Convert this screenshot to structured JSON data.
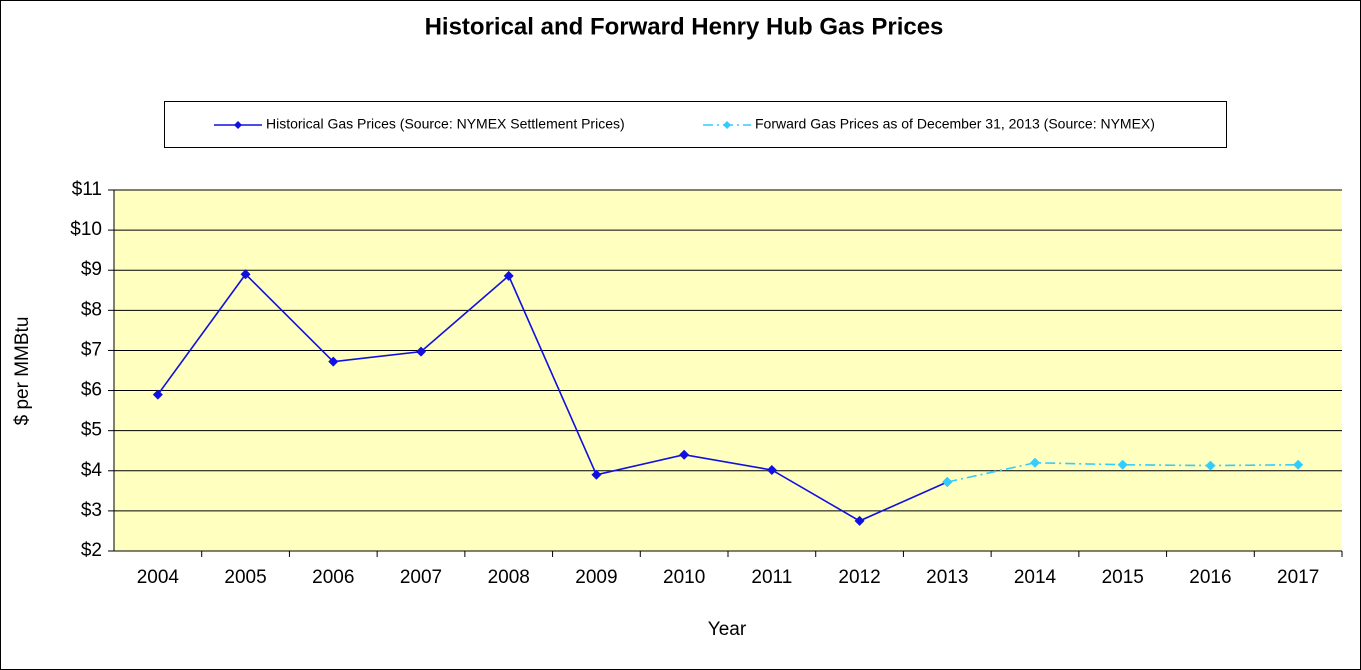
{
  "chart_data": {
    "type": "line",
    "title": "Historical and Forward Henry Hub Gas Prices",
    "x_label": "Year",
    "y_label": "$ per MMBtu",
    "categories": [
      "2004",
      "2005",
      "2006",
      "2007",
      "2008",
      "2009",
      "2010",
      "2011",
      "2012",
      "2013",
      "2014",
      "2015",
      "2016",
      "2017"
    ],
    "series": [
      {
        "name": "Historical Gas Prices (Source: NYMEX Settlement Prices)",
        "color": "#1010e0",
        "values": [
          5.9,
          8.9,
          6.72,
          6.97,
          8.86,
          3.9,
          4.4,
          4.02,
          2.75,
          3.72,
          null,
          null,
          null,
          null
        ]
      },
      {
        "name": "Forward Gas Prices as of December 31, 2013 (Source: NYMEX)",
        "color": "#33ccff",
        "values": [
          null,
          null,
          null,
          null,
          null,
          null,
          null,
          null,
          null,
          3.72,
          4.2,
          4.15,
          4.13,
          4.15
        ]
      }
    ],
    "ylim": [
      2,
      11
    ],
    "yticks": [
      {
        "value": 2,
        "label": "$2"
      },
      {
        "value": 3,
        "label": "$3"
      },
      {
        "value": 4,
        "label": "$4"
      },
      {
        "value": 5,
        "label": "$5"
      },
      {
        "value": 6,
        "label": "$6"
      },
      {
        "value": 7,
        "label": "$7"
      },
      {
        "value": 8,
        "label": "$8"
      },
      {
        "value": 9,
        "label": "$9"
      },
      {
        "value": 10,
        "label": "$10"
      },
      {
        "value": 11,
        "label": "$11"
      }
    ],
    "grid": true,
    "legend": "top",
    "plot_background": "#ffffc0"
  }
}
